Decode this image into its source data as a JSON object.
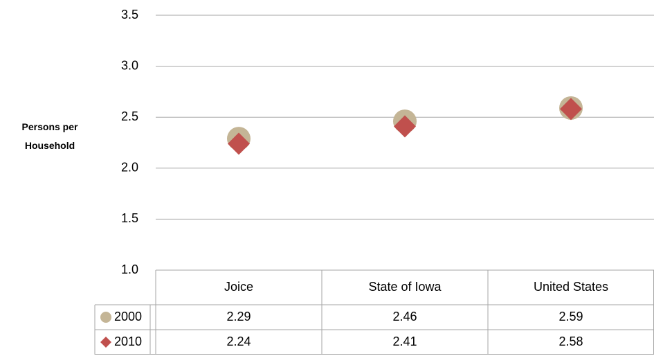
{
  "chart_data": {
    "type": "scatter",
    "y_label": "Persons per Household",
    "categories": [
      "Joice",
      "State of Iowa",
      "United States"
    ],
    "series": [
      {
        "name": "2000",
        "color": "#c4b596",
        "marker": "circle",
        "values": [
          2.29,
          2.46,
          2.59
        ]
      },
      {
        "name": "2010",
        "color": "#c0504d",
        "marker": "diamond",
        "values": [
          2.24,
          2.41,
          2.58
        ]
      }
    ],
    "ylim": [
      1,
      3.5
    ],
    "yticks": [
      {
        "value": 1,
        "label": "1.0"
      },
      1.5,
      {
        "value": 2,
        "label": "2.0"
      },
      2.5,
      {
        "value": 3,
        "label": "3.0"
      },
      3.5
    ],
    "grid": true,
    "data_table": true
  }
}
